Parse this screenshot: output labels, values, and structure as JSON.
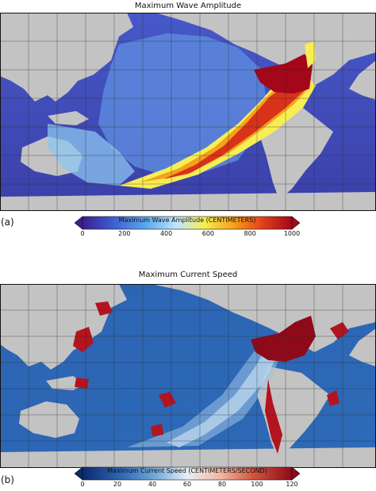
{
  "panels": [
    {
      "id": "a",
      "label": "(a)",
      "title": "Maximum Wave Amplitude",
      "colorbar": {
        "title": "Maximum Wave Amplitude (CENTIMETERS)",
        "ticks": [
          "0",
          "200",
          "400",
          "600",
          "800",
          "1000"
        ],
        "colors": [
          "#3a1e8c",
          "#3f5bd0",
          "#5aa6ec",
          "#bfe6fb",
          "#f6ee54",
          "#f7a11c",
          "#e0401b",
          "#a4061a"
        ]
      }
    },
    {
      "id": "b",
      "label": "(b)",
      "title": "Maximum Current Speed",
      "colorbar": {
        "title": "Maximum Current Speed (CENTIMETERS/SECOND)",
        "ticks": [
          "0",
          "20",
          "40",
          "60",
          "80",
          "100",
          "120"
        ],
        "colors": [
          "#0a2a6e",
          "#2f64b4",
          "#6fa6d8",
          "#e8eef6",
          "#f2b6a0",
          "#d2513d",
          "#8e0a1a"
        ]
      }
    }
  ],
  "colors": {
    "land": "#c3c3c3",
    "grid": "#2a2a2a"
  }
}
